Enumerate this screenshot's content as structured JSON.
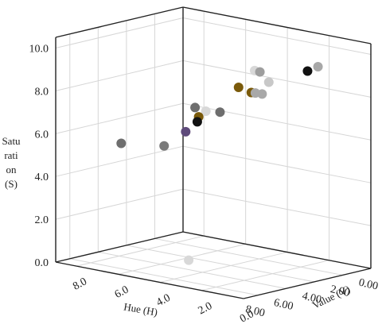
{
  "chart_data": {
    "type": "scatter",
    "title": "",
    "xlabel": "Hue (H)",
    "ylabel": "Value (V)",
    "zlabel": "Saturation (S)",
    "zlabel_lines": [
      "Satu",
      "rati",
      "on",
      "(S)"
    ],
    "xlim": [
      0,
      9
    ],
    "ylim": [
      0,
      9
    ],
    "zlim": [
      0,
      10.5
    ],
    "x_ticks": [
      "0.00",
      "2.00",
      "4.00",
      "6.00",
      "8.00"
    ],
    "y_ticks": [
      "0.0",
      "2.0",
      "4.0",
      "6.0",
      "8.0"
    ],
    "z_ticks": [
      "0.0",
      "2.0",
      "4.0",
      "6.0",
      "8.0",
      "10.0"
    ],
    "grid": true,
    "points": [
      {
        "x": 0.5,
        "y": 6.0,
        "z": 7.4,
        "color": "#7a5a0a"
      },
      {
        "x": 1.5,
        "y": 7.3,
        "z": 5.7,
        "color": "#111111"
      },
      {
        "x": 1.5,
        "y": 4.3,
        "z": 8.6,
        "color": "#9e9e9e"
      },
      {
        "x": 3.5,
        "y": 6.5,
        "z": 5.7,
        "color": "#5e4a7a"
      },
      {
        "x": 3.0,
        "y": 3.5,
        "z": 8.0,
        "color": "#a8a8a8"
      },
      {
        "x": 4.5,
        "y": 5.2,
        "z": 6.8,
        "color": "#7a5a0a"
      },
      {
        "x": 3.0,
        "y": 1.0,
        "z": 9.5,
        "color": "#111111"
      },
      {
        "x": 4.0,
        "y": 2.5,
        "z": 8.3,
        "color": "#a8a8a8"
      },
      {
        "x": 3.0,
        "y": 0.5,
        "z": 9.8,
        "color": "#a8a8a8"
      },
      {
        "x": 5.0,
        "y": 1.5,
        "z": 9.2,
        "color": "#c8c8c8"
      },
      {
        "x": 5.5,
        "y": 2.0,
        "z": 8.7,
        "color": "#7a5a0a"
      },
      {
        "x": 5.5,
        "y": 3.5,
        "z": 7.5,
        "color": "#6e6e6e"
      },
      {
        "x": 6.5,
        "y": 3.5,
        "z": 7.7,
        "color": "#d8d8d8"
      },
      {
        "x": 6.0,
        "y": 1.5,
        "z": 9.9,
        "color": "#d8d8d8"
      },
      {
        "x": 8.0,
        "y": 3.0,
        "z": 8.2,
        "color": "#6e6e6e"
      },
      {
        "x": 8.5,
        "y": 6.2,
        "z": 6.0,
        "color": "#6e6e6e"
      },
      {
        "x": 6.5,
        "y": 5.5,
        "z": 5.7,
        "color": "#7a7a7a"
      },
      {
        "x": 5.5,
        "y": 5.0,
        "z": 0.3,
        "color": "#d8d8d8"
      }
    ]
  }
}
